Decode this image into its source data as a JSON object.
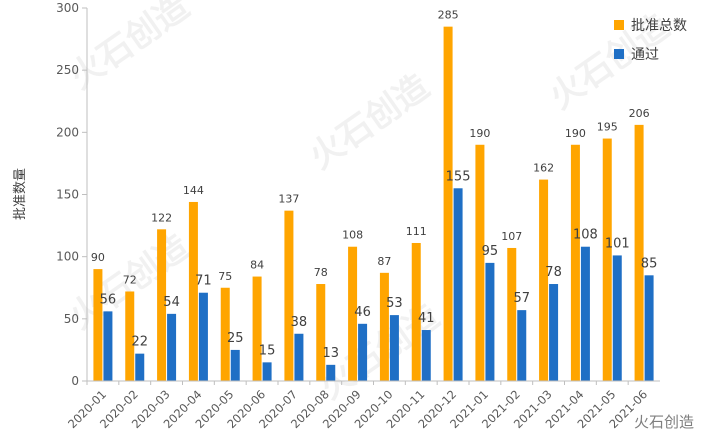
{
  "chart_data": {
    "type": "bar",
    "ylabel": "批准数量",
    "ylim": [
      0,
      300
    ],
    "yticks": [
      0,
      50,
      100,
      150,
      200,
      250,
      300
    ],
    "categories": [
      "2020-01",
      "2020-02",
      "2020-03",
      "2020-04",
      "2020-05",
      "2020-06",
      "2020-07",
      "2020-08",
      "2020-09",
      "2020-10",
      "2020-11",
      "2020-12",
      "2021-01",
      "2021-02",
      "2021-03",
      "2021-04",
      "2021-05",
      "2021-06"
    ],
    "series": [
      {
        "name": "批准总数",
        "color": "#FFA500",
        "values": [
          90,
          72,
          122,
          144,
          75,
          84,
          137,
          78,
          108,
          87,
          111,
          285,
          190,
          107,
          162,
          190,
          195,
          206
        ]
      },
      {
        "name": "通过",
        "color": "#1F6FC5",
        "values": [
          56,
          22,
          54,
          71,
          25,
          15,
          38,
          13,
          46,
          53,
          41,
          155,
          95,
          57,
          78,
          108,
          101,
          85
        ]
      }
    ],
    "legend_position": "top-right",
    "grid": false
  },
  "watermark": {
    "text": "火石创造"
  }
}
